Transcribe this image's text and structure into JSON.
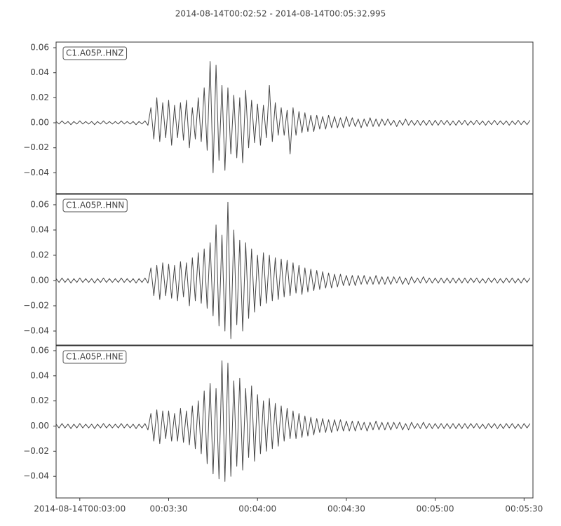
{
  "title": "2014-08-14T00:02:52  -  2014-08-14T00:05:32.995",
  "chart_data": [
    {
      "type": "line",
      "x": [
        0,
        1,
        2,
        3,
        4,
        5,
        6,
        7,
        8,
        9,
        10,
        11,
        12,
        13,
        14,
        15,
        16,
        17,
        18,
        19,
        20,
        21,
        22,
        23,
        24,
        25,
        26,
        27,
        28,
        29,
        30,
        31,
        32,
        33,
        34,
        35,
        36,
        37,
        38,
        39,
        40,
        41,
        42,
        43,
        44,
        45,
        46,
        47,
        48,
        49,
        50,
        51,
        52,
        53,
        54,
        55,
        56,
        57,
        58,
        59,
        60,
        61,
        62,
        63,
        64,
        65,
        66,
        67,
        68,
        69,
        70,
        71,
        72,
        73,
        74,
        75,
        76,
        77,
        78,
        79,
        80,
        81,
        82,
        83,
        84,
        85,
        86,
        87,
        88,
        89,
        90,
        91,
        92,
        93,
        94,
        95,
        96,
        97,
        98,
        99,
        100,
        101,
        102,
        103,
        104,
        105,
        106,
        107,
        108,
        109,
        110,
        111,
        112,
        113,
        114,
        115,
        116,
        117,
        118,
        119,
        120,
        121,
        122,
        123,
        124,
        125,
        126,
        127,
        128,
        129,
        130,
        131,
        132,
        133,
        134,
        135,
        136,
        137,
        138,
        139,
        140,
        141,
        142,
        143,
        144,
        145,
        146,
        147,
        148,
        149,
        150,
        151,
        152,
        153,
        154,
        155,
        156,
        157,
        158,
        159,
        160
      ],
      "series": [
        {
          "name": "C1.A05P..HNZ",
          "color": "#474747",
          "values": [
            0.001,
            -0.001,
            0.0015,
            -0.001,
            0.001,
            -0.0015,
            0.001,
            -0.001,
            0.0015,
            -0.001,
            0.001,
            -0.001,
            0.001,
            -0.0015,
            0.001,
            -0.001,
            0.0015,
            -0.001,
            0.001,
            -0.001,
            0.001,
            -0.001,
            0.0015,
            -0.001,
            0.001,
            -0.001,
            0.001,
            -0.0015,
            0.001,
            -0.001,
            0.0015,
            -0.002,
            0.012,
            -0.013,
            0.02,
            -0.015,
            0.016,
            -0.012,
            0.018,
            -0.018,
            0.014,
            -0.012,
            0.016,
            -0.014,
            0.018,
            -0.02,
            0.012,
            -0.013,
            0.02,
            -0.015,
            0.028,
            -0.022,
            0.049,
            -0.04,
            0.046,
            -0.03,
            0.03,
            -0.038,
            0.028,
            -0.025,
            0.022,
            -0.028,
            0.02,
            -0.032,
            0.026,
            -0.02,
            0.018,
            -0.016,
            0.015,
            -0.018,
            0.014,
            -0.012,
            0.03,
            -0.015,
            0.016,
            -0.01,
            0.012,
            -0.01,
            0.01,
            -0.025,
            0.012,
            -0.01,
            0.009,
            -0.008,
            0.008,
            -0.007,
            0.006,
            -0.007,
            0.006,
            -0.005,
            0.005,
            -0.005,
            0.006,
            -0.004,
            0.005,
            -0.004,
            0.004,
            -0.004,
            0.005,
            -0.003,
            0.004,
            -0.003,
            0.003,
            -0.004,
            0.003,
            -0.003,
            0.004,
            -0.003,
            0.003,
            -0.003,
            0.003,
            -0.002,
            0.003,
            -0.002,
            0.002,
            -0.003,
            0.002,
            -0.002,
            0.003,
            -0.002,
            0.002,
            -0.002,
            0.002,
            -0.002,
            0.002,
            -0.002,
            0.002,
            -0.002,
            0.002,
            -0.002,
            0.002,
            -0.0015,
            0.002,
            -0.002,
            0.0015,
            -0.002,
            0.002,
            -0.0015,
            0.002,
            -0.002,
            0.0015,
            -0.0015,
            0.002,
            -0.0015,
            0.0015,
            -0.002,
            0.0015,
            -0.0015,
            0.002,
            -0.0015,
            0.0015,
            -0.0015,
            0.0015,
            -0.002,
            0.0015,
            -0.0015,
            0.002,
            -0.0015,
            0.0015,
            -0.0015,
            0.002
          ]
        }
      ],
      "xlim": [
        0,
        160.995
      ],
      "ylim": [
        -0.0566,
        0.0645
      ],
      "yticks": [
        0.06,
        0.04,
        0.02,
        {
          "value": 0,
          "label": "0.00"
        },
        {
          "value": -0.02,
          "label": "−0.02"
        },
        {
          "value": -0.04,
          "label": "−0.04"
        }
      ]
    },
    {
      "type": "line",
      "x": [
        0,
        1,
        2,
        3,
        4,
        5,
        6,
        7,
        8,
        9,
        10,
        11,
        12,
        13,
        14,
        15,
        16,
        17,
        18,
        19,
        20,
        21,
        22,
        23,
        24,
        25,
        26,
        27,
        28,
        29,
        30,
        31,
        32,
        33,
        34,
        35,
        36,
        37,
        38,
        39,
        40,
        41,
        42,
        43,
        44,
        45,
        46,
        47,
        48,
        49,
        50,
        51,
        52,
        53,
        54,
        55,
        56,
        57,
        58,
        59,
        60,
        61,
        62,
        63,
        64,
        65,
        66,
        67,
        68,
        69,
        70,
        71,
        72,
        73,
        74,
        75,
        76,
        77,
        78,
        79,
        80,
        81,
        82,
        83,
        84,
        85,
        86,
        87,
        88,
        89,
        90,
        91,
        92,
        93,
        94,
        95,
        96,
        97,
        98,
        99,
        100,
        101,
        102,
        103,
        104,
        105,
        106,
        107,
        108,
        109,
        110,
        111,
        112,
        113,
        114,
        115,
        116,
        117,
        118,
        119,
        120,
        121,
        122,
        123,
        124,
        125,
        126,
        127,
        128,
        129,
        130,
        131,
        132,
        133,
        134,
        135,
        136,
        137,
        138,
        139,
        140,
        141,
        142,
        143,
        144,
        145,
        146,
        147,
        148,
        149,
        150,
        151,
        152,
        153,
        154,
        155,
        156,
        157,
        158,
        159,
        160
      ],
      "series": [
        {
          "name": "C1.A05P..HNN",
          "color": "#474747",
          "values": [
            0.0015,
            -0.0015,
            0.002,
            -0.0015,
            0.0015,
            -0.002,
            0.0015,
            -0.0015,
            0.002,
            -0.0015,
            0.0015,
            -0.0015,
            0.0015,
            -0.002,
            0.0015,
            -0.0015,
            0.002,
            -0.0015,
            0.0015,
            -0.0015,
            0.0015,
            -0.0015,
            0.002,
            -0.0015,
            0.0015,
            -0.0015,
            0.0015,
            -0.002,
            0.0015,
            -0.0015,
            0.002,
            -0.002,
            0.01,
            -0.012,
            0.012,
            -0.015,
            0.014,
            -0.012,
            0.013,
            -0.014,
            0.012,
            -0.016,
            0.015,
            -0.013,
            0.014,
            -0.02,
            0.018,
            -0.016,
            0.022,
            -0.018,
            0.025,
            -0.022,
            0.03,
            -0.028,
            0.044,
            -0.036,
            0.036,
            -0.04,
            0.062,
            -0.046,
            0.04,
            -0.035,
            0.032,
            -0.04,
            0.03,
            -0.03,
            0.025,
            -0.025,
            0.02,
            -0.02,
            0.022,
            -0.018,
            0.02,
            -0.016,
            0.018,
            -0.015,
            0.017,
            -0.013,
            0.016,
            -0.012,
            0.014,
            -0.01,
            0.012,
            -0.011,
            0.01,
            -0.009,
            0.009,
            -0.008,
            0.008,
            -0.007,
            0.007,
            -0.006,
            0.006,
            -0.006,
            0.005,
            -0.005,
            0.005,
            -0.004,
            0.004,
            -0.004,
            0.004,
            -0.004,
            0.004,
            -0.003,
            0.004,
            -0.003,
            0.003,
            -0.003,
            0.004,
            -0.003,
            0.003,
            -0.003,
            0.003,
            -0.003,
            0.003,
            -0.002,
            0.003,
            -0.003,
            0.002,
            -0.003,
            0.003,
            -0.002,
            0.002,
            -0.002,
            0.003,
            -0.002,
            0.002,
            -0.002,
            0.002,
            -0.002,
            0.002,
            -0.002,
            0.002,
            -0.002,
            0.002,
            -0.002,
            0.002,
            -0.002,
            0.002,
            -0.002,
            0.002,
            -0.0015,
            0.002,
            -0.002,
            0.0015,
            -0.002,
            0.002,
            -0.0015,
            0.002,
            -0.002,
            0.0015,
            -0.002,
            0.002,
            -0.0015,
            0.002,
            -0.002,
            0.0015,
            -0.002,
            0.002,
            -0.0015,
            0.002
          ]
        }
      ],
      "xlim": [
        0,
        160.995
      ],
      "ylim": [
        -0.0511,
        0.0683
      ],
      "yticks": [
        0.06,
        0.04,
        0.02,
        {
          "value": 0,
          "label": "0.00"
        },
        {
          "value": -0.02,
          "label": "−0.02"
        },
        {
          "value": -0.04,
          "label": "−0.04"
        }
      ]
    },
    {
      "type": "line",
      "x": [
        0,
        1,
        2,
        3,
        4,
        5,
        6,
        7,
        8,
        9,
        10,
        11,
        12,
        13,
        14,
        15,
        16,
        17,
        18,
        19,
        20,
        21,
        22,
        23,
        24,
        25,
        26,
        27,
        28,
        29,
        30,
        31,
        32,
        33,
        34,
        35,
        36,
        37,
        38,
        39,
        40,
        41,
        42,
        43,
        44,
        45,
        46,
        47,
        48,
        49,
        50,
        51,
        52,
        53,
        54,
        55,
        56,
        57,
        58,
        59,
        60,
        61,
        62,
        63,
        64,
        65,
        66,
        67,
        68,
        69,
        70,
        71,
        72,
        73,
        74,
        75,
        76,
        77,
        78,
        79,
        80,
        81,
        82,
        83,
        84,
        85,
        86,
        87,
        88,
        89,
        90,
        91,
        92,
        93,
        94,
        95,
        96,
        97,
        98,
        99,
        100,
        101,
        102,
        103,
        104,
        105,
        106,
        107,
        108,
        109,
        110,
        111,
        112,
        113,
        114,
        115,
        116,
        117,
        118,
        119,
        120,
        121,
        122,
        123,
        124,
        125,
        126,
        127,
        128,
        129,
        130,
        131,
        132,
        133,
        134,
        135,
        136,
        137,
        138,
        139,
        140,
        141,
        142,
        143,
        144,
        145,
        146,
        147,
        148,
        149,
        150,
        151,
        152,
        153,
        154,
        155,
        156,
        157,
        158,
        159,
        160
      ],
      "series": [
        {
          "name": "C1.A05P..HNE",
          "color": "#474747",
          "values": [
            0.0015,
            -0.0015,
            0.002,
            -0.0015,
            0.0015,
            -0.002,
            0.0015,
            -0.0015,
            0.002,
            -0.0015,
            0.0015,
            -0.0015,
            0.0015,
            -0.002,
            0.0015,
            -0.0015,
            0.002,
            -0.0015,
            0.0015,
            -0.0015,
            0.0015,
            -0.0015,
            0.002,
            -0.0015,
            0.0015,
            -0.0015,
            0.0015,
            -0.002,
            0.0015,
            -0.0015,
            0.002,
            -0.003,
            0.01,
            -0.012,
            0.013,
            -0.014,
            0.012,
            -0.01,
            0.012,
            -0.012,
            0.01,
            -0.012,
            0.014,
            -0.013,
            0.012,
            -0.015,
            0.016,
            -0.018,
            0.02,
            -0.022,
            0.028,
            -0.03,
            0.034,
            -0.038,
            0.03,
            -0.042,
            0.052,
            -0.044,
            0.05,
            -0.04,
            0.036,
            -0.032,
            0.038,
            -0.035,
            0.03,
            -0.025,
            0.032,
            -0.028,
            0.025,
            -0.022,
            0.02,
            -0.02,
            0.022,
            -0.018,
            0.018,
            -0.016,
            0.016,
            -0.012,
            0.014,
            -0.01,
            0.012,
            -0.01,
            0.01,
            -0.009,
            0.008,
            -0.008,
            0.007,
            -0.007,
            0.006,
            -0.005,
            0.006,
            -0.005,
            0.005,
            -0.005,
            0.005,
            -0.004,
            0.005,
            -0.004,
            0.004,
            -0.004,
            0.004,
            -0.004,
            0.004,
            -0.003,
            0.003,
            -0.004,
            0.003,
            -0.003,
            0.004,
            -0.003,
            0.003,
            -0.003,
            0.003,
            -0.003,
            0.003,
            -0.002,
            0.003,
            -0.003,
            0.002,
            -0.003,
            0.003,
            -0.002,
            0.002,
            -0.002,
            0.003,
            -0.002,
            0.002,
            -0.002,
            0.002,
            -0.002,
            0.002,
            -0.002,
            0.002,
            -0.002,
            0.002,
            -0.002,
            0.002,
            -0.002,
            0.002,
            -0.002,
            0.002,
            -0.0015,
            0.002,
            -0.002,
            0.0015,
            -0.002,
            0.002,
            -0.0015,
            0.002,
            -0.002,
            0.0015,
            -0.002,
            0.002,
            -0.0015,
            0.002,
            -0.002,
            0.0015,
            -0.002,
            0.002,
            -0.0015,
            0.002
          ]
        }
      ],
      "xlim": [
        0,
        160.995
      ],
      "ylim": [
        -0.0572,
        0.0639
      ],
      "yticks": [
        0.06,
        0.04,
        0.02,
        {
          "value": 0,
          "label": "0.00"
        },
        {
          "value": -0.02,
          "label": "−0.02"
        },
        {
          "value": -0.04,
          "label": "−0.04"
        }
      ],
      "xticks": [
        {
          "value": 8,
          "label": "2014-08-14T00:03:00"
        },
        {
          "value": 38,
          "label": "00:03:30"
        },
        {
          "value": 68,
          "label": "00:04:00"
        },
        {
          "value": 98,
          "label": "00:04:30"
        },
        {
          "value": 128,
          "label": "00:05:00"
        },
        {
          "value": 158,
          "label": "00:05:30"
        }
      ]
    }
  ]
}
